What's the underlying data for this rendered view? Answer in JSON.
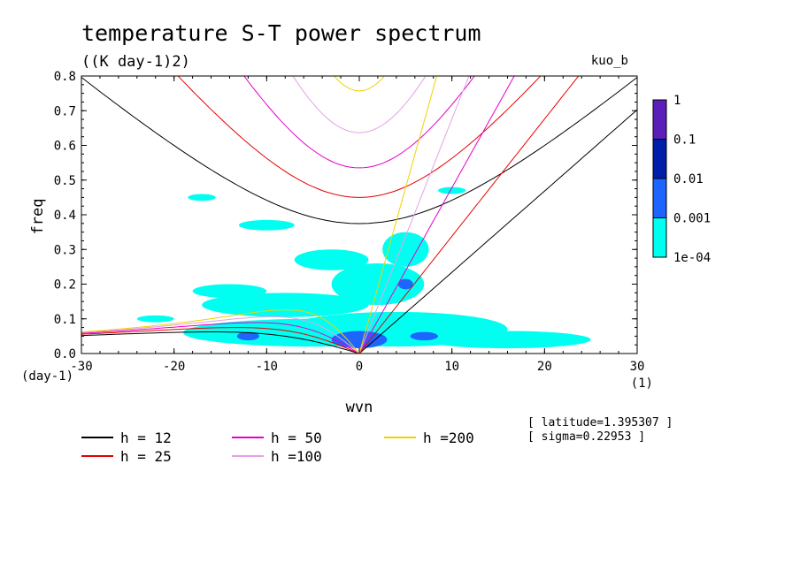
{
  "chart_data": {
    "type": "heatmap",
    "title": "temperature S-T power spectrum",
    "subtitle": "((K day-1)2)",
    "run_label": "kuo_b",
    "xlabel": "wvn",
    "ylabel": "freq",
    "x_unit": "(1)",
    "y_unit": "(day-1)",
    "xlim": [
      -30,
      30
    ],
    "ylim": [
      0,
      0.8
    ],
    "x_ticks": [
      "-30",
      "-20",
      "-10",
      "0",
      "10",
      "20",
      "30"
    ],
    "y_ticks": [
      "0.0",
      "0.1",
      "0.2",
      "0.3",
      "0.4",
      "0.5",
      "0.6",
      "0.7",
      "0.8"
    ],
    "colorbar": {
      "labels": [
        "1",
        "0.1",
        "0.01",
        "0.001",
        "1e-04"
      ],
      "colors": [
        "#5a1fb8",
        "#001ea8",
        "#1e64ff",
        "#00fff0"
      ]
    },
    "contour_blobs": [
      {
        "level": "1e-04",
        "color": "#00fff0",
        "cx": -5,
        "cy": 0.06,
        "rx": 14,
        "ry": 0.04
      },
      {
        "level": "1e-04",
        "color": "#00fff0",
        "cx": 4,
        "cy": 0.07,
        "rx": 12,
        "ry": 0.05
      },
      {
        "level": "1e-04",
        "color": "#00fff0",
        "cx": -8,
        "cy": 0.14,
        "rx": 9,
        "ry": 0.035
      },
      {
        "level": "1e-04",
        "color": "#00fff0",
        "cx": 2,
        "cy": 0.2,
        "rx": 5,
        "ry": 0.06
      },
      {
        "level": "1e-04",
        "color": "#00fff0",
        "cx": 5,
        "cy": 0.3,
        "rx": 2.5,
        "ry": 0.05
      },
      {
        "level": "1e-04",
        "color": "#00fff0",
        "cx": -14,
        "cy": 0.18,
        "rx": 4,
        "ry": 0.02
      },
      {
        "level": "1e-04",
        "color": "#00fff0",
        "cx": -3,
        "cy": 0.27,
        "rx": 4,
        "ry": 0.03
      },
      {
        "level": "1e-04",
        "color": "#00fff0",
        "cx": -10,
        "cy": 0.37,
        "rx": 3,
        "ry": 0.015
      },
      {
        "level": "1e-04",
        "color": "#00fff0",
        "cx": 16,
        "cy": 0.04,
        "rx": 9,
        "ry": 0.025
      },
      {
        "level": "1e-04",
        "color": "#00fff0",
        "cx": -22,
        "cy": 0.1,
        "rx": 2,
        "ry": 0.01
      },
      {
        "level": "1e-04",
        "color": "#00fff0",
        "cx": -17,
        "cy": 0.45,
        "rx": 1.5,
        "ry": 0.01
      },
      {
        "level": "1e-04",
        "color": "#00fff0",
        "cx": 10,
        "cy": 0.47,
        "rx": 1.5,
        "ry": 0.01
      },
      {
        "level": "0.001",
        "color": "#1e64ff",
        "cx": 0,
        "cy": 0.04,
        "rx": 3,
        "ry": 0.025
      },
      {
        "level": "0.001",
        "color": "#1e64ff",
        "cx": 7,
        "cy": 0.05,
        "rx": 1.5,
        "ry": 0.012
      },
      {
        "level": "0.001",
        "color": "#1e64ff",
        "cx": -12,
        "cy": 0.05,
        "rx": 1.2,
        "ry": 0.012
      },
      {
        "level": "0.001",
        "color": "#1e64ff",
        "cx": 5,
        "cy": 0.2,
        "rx": 0.8,
        "ry": 0.015
      }
    ],
    "dispersion_series": [
      {
        "name": "h = 12",
        "h": 12,
        "color": "#000000"
      },
      {
        "name": "h = 25",
        "h": 25,
        "color": "#e60000"
      },
      {
        "name": "h = 50",
        "h": 50,
        "color": "#e600c8"
      },
      {
        "name": "h =100",
        "h": 100,
        "color": "#e6a0e6"
      },
      {
        "name": "h =200",
        "h": 200,
        "color": "#f0d200"
      }
    ],
    "annotations": [
      "[ latitude=1.395307 ]",
      "[ sigma=0.22953 ]"
    ]
  }
}
